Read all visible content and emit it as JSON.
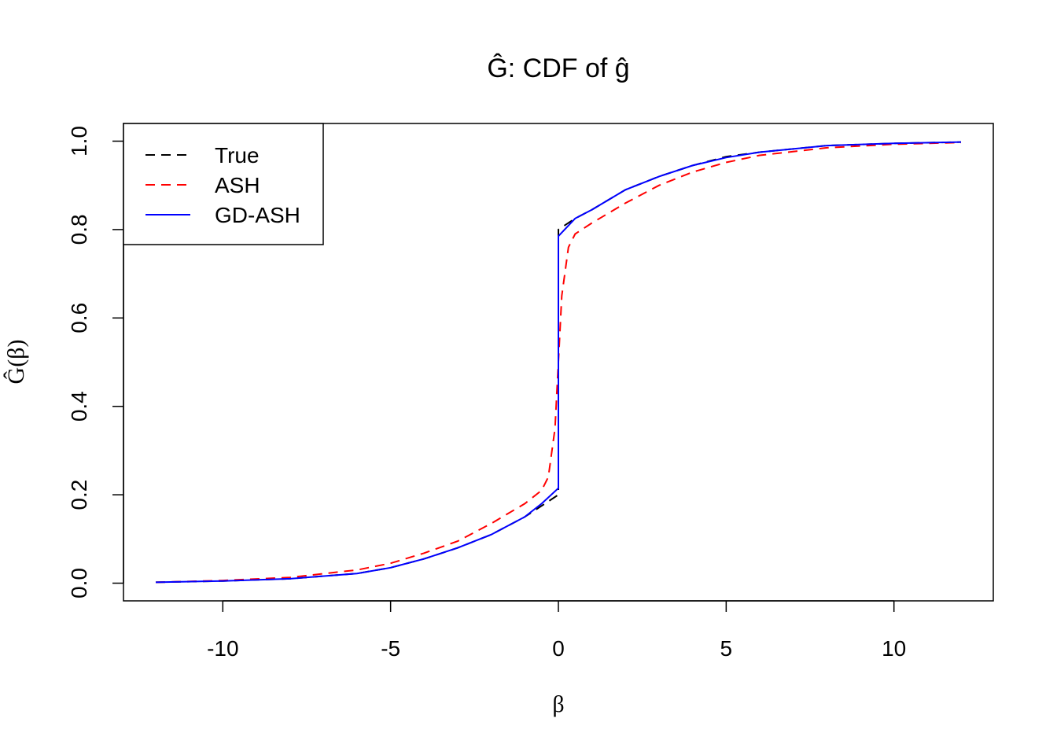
{
  "chart_data": {
    "type": "line",
    "title": "Ĝ: CDF of ĝ",
    "xlabel": "β",
    "ylabel": "Ĝ(β)",
    "xlim": [
      -12.96,
      12.96
    ],
    "ylim": [
      -0.04,
      1.04
    ],
    "xticks": [
      -10,
      -5,
      0,
      5,
      10
    ],
    "xtick_labels": [
      "-10",
      "-5",
      "0",
      "5",
      "10"
    ],
    "yticks": [
      0,
      0.2,
      0.4,
      0.6,
      0.8,
      1.0
    ],
    "ytick_labels": [
      "0.0",
      "0.2",
      "0.4",
      "0.6",
      "0.8",
      "1.0"
    ],
    "grid": false,
    "legend_position": "top-left",
    "series": [
      {
        "name": "True",
        "color": "#000000",
        "dash": "dashed",
        "x": [
          -12,
          -10,
          -8,
          -6,
          -5,
          -4,
          -3,
          -2,
          -1,
          -0.5,
          0,
          0,
          0.5,
          1,
          2,
          3,
          4,
          5,
          6,
          8,
          10,
          12
        ],
        "y": [
          0.002,
          0.005,
          0.01,
          0.022,
          0.035,
          0.055,
          0.08,
          0.11,
          0.15,
          0.175,
          0.2,
          0.8,
          0.825,
          0.845,
          0.89,
          0.92,
          0.945,
          0.965,
          0.975,
          0.99,
          0.995,
          0.998
        ]
      },
      {
        "name": "ASH",
        "color": "#ff0000",
        "dash": "dashed",
        "x": [
          -12,
          -10,
          -8,
          -6,
          -5,
          -4,
          -3,
          -2,
          -1,
          -0.5,
          -0.3,
          -0.1,
          0,
          0.1,
          0.3,
          0.5,
          1,
          2,
          3,
          4,
          5,
          6,
          8,
          10,
          12
        ],
        "y": [
          0.002,
          0.006,
          0.013,
          0.03,
          0.045,
          0.068,
          0.095,
          0.135,
          0.18,
          0.21,
          0.24,
          0.35,
          0.5,
          0.65,
          0.76,
          0.79,
          0.815,
          0.86,
          0.9,
          0.93,
          0.952,
          0.968,
          0.985,
          0.993,
          0.997
        ]
      },
      {
        "name": "GD-ASH",
        "color": "#0000ff",
        "dash": "solid",
        "x": [
          -12,
          -10,
          -8,
          -6,
          -5,
          -4,
          -3,
          -2,
          -1,
          -0.5,
          0,
          0,
          0.5,
          1,
          2,
          3,
          4,
          5,
          6,
          8,
          10,
          12
        ],
        "y": [
          0.002,
          0.005,
          0.01,
          0.022,
          0.035,
          0.055,
          0.08,
          0.11,
          0.15,
          0.18,
          0.215,
          0.785,
          0.825,
          0.845,
          0.89,
          0.92,
          0.945,
          0.963,
          0.975,
          0.99,
          0.995,
          0.998
        ]
      }
    ]
  }
}
